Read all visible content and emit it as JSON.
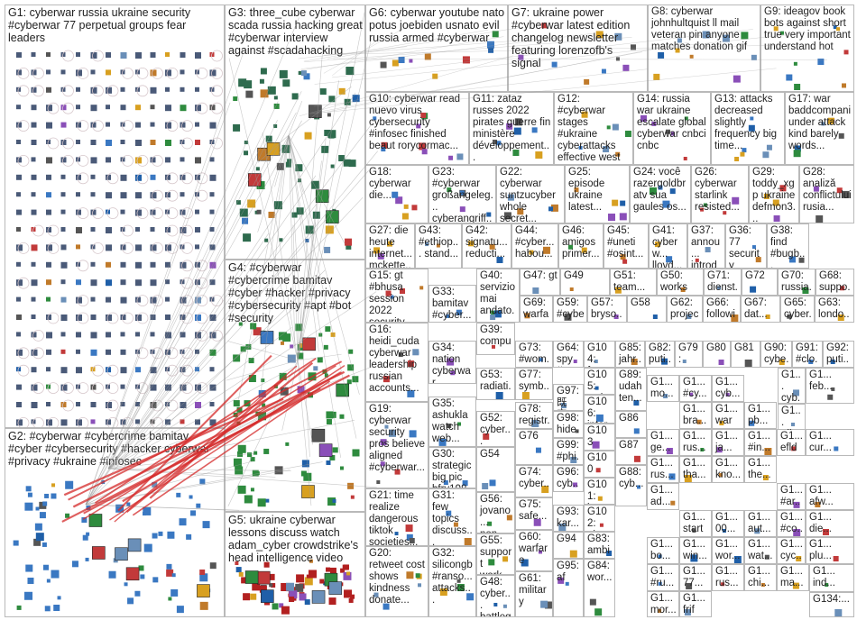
{
  "groups": [
    {
      "id": "g1",
      "label": "G1: cyberwar russia ukraine security #cyberwar 77 perpetual groups fear leaders"
    },
    {
      "id": "g2",
      "label": "G2: #cyberwar #cybercrime bamitav #cyber #cybersecurity #hacker cyberwar #privacy #ukraine #infosec"
    },
    {
      "id": "g3",
      "label": "G3: three_cube cyberwar scada russia hacking great #cyberwar interview against #scadahacking"
    },
    {
      "id": "g4",
      "label": "G4: #cyberwar #cybercrime bamitav #cyber #hacker #privacy #cybersecurity #apt #bot #security"
    },
    {
      "id": "g5",
      "label": "G5: ukraine cyberwar lessons discuss watch adam_cyber crowdstrike's head intelligence video"
    },
    {
      "id": "g6",
      "label": "G6: cyberwar youtube nato potus joebiden usnato evil russia armed #cyberwar"
    },
    {
      "id": "g7",
      "label": "G7: ukraine power #cyberwar latest edition changelog newsletter featuring lorenzofb's signal"
    },
    {
      "id": "g8",
      "label": "G8: cyberwar johnhultquist ll mail veteran pin anyone matches donation gif"
    },
    {
      "id": "g9",
      "label": "G9: ideagov book bots against short true very important understand hot"
    },
    {
      "id": "g10",
      "label": "G10: cyberwar read nuevo virus cybersecurity #infosec finished beaut rorycormac..."
    },
    {
      "id": "g11",
      "label": "G11: zataz russes 2022 pirates guerre fin ministère développement..."
    },
    {
      "id": "g12",
      "label": "G12: #cyberwar stages #ukraine cyberattacks effective west help..."
    },
    {
      "id": "g14",
      "label": "G14: russia war ukraine escalate global cyberwar cnbci cnbc"
    },
    {
      "id": "g13",
      "label": "G13: attacks decreased slightly frequency big time..."
    },
    {
      "id": "g17",
      "label": "G17: war baddcompani under attack kind barely words..."
    },
    {
      "id": "g18",
      "label": "G18: cyberwar die..."
    },
    {
      "id": "g23",
      "label": "G23: #cyberwar großangeleg... cyberangriff..."
    },
    {
      "id": "g22",
      "label": "G22: cyberwar suntzucyber whole secret..."
    },
    {
      "id": "g25",
      "label": "G25: episode ukraine latest..."
    },
    {
      "id": "g24",
      "label": "G24: você razergoldbr atv sua gaules os..."
    },
    {
      "id": "g26",
      "label": "G26: cyberwar starlink resisted..."
    },
    {
      "id": "g29",
      "label": "G29: toddy_xgp ukraine defmon3..."
    },
    {
      "id": "g28",
      "label": "G28: analiză conflictului rusia..."
    },
    {
      "id": "g27",
      "label": "G27: die heute internet... mckette..."
    },
    {
      "id": "g43",
      "label": "G43: #ethiop... stand..."
    },
    {
      "id": "g42",
      "label": "G42: signatu... reducti..."
    },
    {
      "id": "g44",
      "label": "G44: #cyber... habou..."
    },
    {
      "id": "g46",
      "label": "G46: amigos primer..."
    },
    {
      "id": "g45",
      "label": "G45: #uneti #osint..."
    },
    {
      "id": "g41",
      "label": "G41: cyberw... lloyd..."
    },
    {
      "id": "g37",
      "label": "G37: annou... introdu..."
    },
    {
      "id": "g36",
      "label": "G36: 77 security leader..."
    },
    {
      "id": "g38",
      "label": "G38: find #bugb..."
    },
    {
      "id": "g15",
      "label": "G15: gt #bhusa session 2022 security conference..."
    },
    {
      "id": "g40",
      "label": "G40: servizio mai andato..."
    },
    {
      "id": "g47",
      "label": "G47: gt"
    },
    {
      "id": "g49",
      "label": "G49"
    },
    {
      "id": "g51",
      "label": "G51: team..."
    },
    {
      "id": "g50",
      "label": "G50: works"
    },
    {
      "id": "g71",
      "label": "G71: dienst..."
    },
    {
      "id": "g72",
      "label": "G72"
    },
    {
      "id": "g70",
      "label": "G70: russia..."
    },
    {
      "id": "g68",
      "label": "G68: suppo..."
    },
    {
      "id": "g33",
      "label": "G33: bamitav #cyber... #cyberc..."
    },
    {
      "id": "g69",
      "label": "G69: warfare..."
    },
    {
      "id": "g59",
      "label": "G59: #cyber..."
    },
    {
      "id": "g57",
      "label": "G57: bryso..."
    },
    {
      "id": "g58",
      "label": "G58"
    },
    {
      "id": "g62",
      "label": "G62: projec..."
    },
    {
      "id": "g66",
      "label": "G66: followi..."
    },
    {
      "id": "g67",
      "label": "G67: dat..."
    },
    {
      "id": "g65",
      "label": "G65: cyber..."
    },
    {
      "id": "g63",
      "label": "G63: londo..."
    },
    {
      "id": "g16",
      "label": "G16: heidi_cuda cyberwar leadership russian accounts..."
    },
    {
      "id": "g39",
      "label": "G39: compu... cyber..."
    },
    {
      "id": "g34",
      "label": "G34: nation cyberwar amazin..."
    },
    {
      "id": "g73",
      "label": "G73: #wom..."
    },
    {
      "id": "g64",
      "label": "G64: spy #ny..."
    },
    {
      "id": "g104",
      "label": "G104: frase..."
    },
    {
      "id": "g85",
      "label": "G85: jahr..."
    },
    {
      "id": "g82",
      "label": "G82: puti..."
    },
    {
      "id": "g79",
      "label": "G79: trea..."
    },
    {
      "id": "g80",
      "label": "G80"
    },
    {
      "id": "g81",
      "label": "G81"
    },
    {
      "id": "g90",
      "label": "G90: cybe..."
    },
    {
      "id": "g91",
      "label": "G91: #clo..."
    },
    {
      "id": "g92",
      "label": "G92: puti..."
    },
    {
      "id": "g53",
      "label": "G53: radiati..."
    },
    {
      "id": "g77",
      "label": "G77: symb..."
    },
    {
      "id": "g97",
      "label": "G97: 既定..."
    },
    {
      "id": "g105",
      "label": "G105: welc..."
    },
    {
      "id": "g89",
      "label": "G89: udah ten..."
    },
    {
      "id": "g19",
      "label": "G19: cyberwar security pros believe aligned #cyberwar..."
    },
    {
      "id": "g35",
      "label": "G35: ashukla watch web..."
    },
    {
      "id": "g78",
      "label": "G78: registr..."
    },
    {
      "id": "g106",
      "label": "G106: inter..."
    },
    {
      "id": "g86",
      "label": "G86"
    },
    {
      "id": "g52",
      "label": "G52: cyber... gabryb..."
    },
    {
      "id": "g98",
      "label": "G98: hide..."
    },
    {
      "id": "g103",
      "label": "G103"
    },
    {
      "id": "g76",
      "label": "G76"
    },
    {
      "id": "g99",
      "label": "G99: #phi..."
    },
    {
      "id": "g87",
      "label": "G87"
    },
    {
      "id": "g30",
      "label": "G30: strategic big pic bfry198..."
    },
    {
      "id": "g54",
      "label": "G54"
    },
    {
      "id": "g100",
      "label": "G100"
    },
    {
      "id": "g21",
      "label": "G21: time realize dangerous tiktok societies..."
    },
    {
      "id": "g74",
      "label": "G74: cyber..."
    },
    {
      "id": "g96",
      "label": "G96: cyb..."
    },
    {
      "id": "g56",
      "label": "G56: jovano... non..."
    },
    {
      "id": "g101",
      "label": "G101: know..."
    },
    {
      "id": "g88",
      "label": "G88: cyb..."
    },
    {
      "id": "g31",
      "label": "G31: few topics discuss... month..."
    },
    {
      "id": "g75",
      "label": "G75: safe..."
    },
    {
      "id": "g93",
      "label": "G93: kar..."
    },
    {
      "id": "g102",
      "label": "G102: place..."
    },
    {
      "id": "g55",
      "label": "G55: support work..."
    },
    {
      "id": "g60",
      "label": "G60: warfare"
    },
    {
      "id": "g94",
      "label": "G94"
    },
    {
      "id": "g83",
      "label": "G83: ambi..."
    },
    {
      "id": "g20",
      "label": "G20: retweet cost shows kindness donate..."
    },
    {
      "id": "g32",
      "label": "G32: silicongb #ranso... attacks..."
    },
    {
      "id": "g48",
      "label": "G48: cyber... battleg..."
    },
    {
      "id": "g61",
      "label": "G61: military"
    },
    {
      "id": "g95",
      "label": "G95: af"
    },
    {
      "id": "g84",
      "label": "G84: wor..."
    },
    {
      "id": "g134",
      "label": "G134:..."
    },
    {
      "id": "gx1",
      "label": "G1... cyb..."
    },
    {
      "id": "gx2",
      "label": "G1... feb..."
    },
    {
      "id": "gx3",
      "label": "G1... mo..."
    },
    {
      "id": "gx4",
      "label": "G1... #cy..."
    },
    {
      "id": "gx5",
      "label": "G1... cyb..."
    },
    {
      "id": "gx6",
      "label": "G1... bra..."
    },
    {
      "id": "gx7",
      "label": "G1... war"
    },
    {
      "id": "gx8",
      "label": "G1... pb..."
    },
    {
      "id": "gx9",
      "label": "G1... gibt"
    },
    {
      "id": "gx10",
      "label": "G1... ge..."
    },
    {
      "id": "gx11",
      "label": "G1... rus..."
    },
    {
      "id": "gx12",
      "label": "G1... ja..."
    },
    {
      "id": "gx13",
      "label": "G1... #in..."
    },
    {
      "id": "gx14",
      "label": "G1... efld"
    },
    {
      "id": "gx15",
      "label": "G1... cur..."
    },
    {
      "id": "gx16",
      "label": "G1... rus..."
    },
    {
      "id": "gx17",
      "label": "G1... tha..."
    },
    {
      "id": "gx18",
      "label": "G1... kno..."
    },
    {
      "id": "gx19",
      "label": "G1... the..."
    },
    {
      "id": "gx20",
      "label": "G1... #ar..."
    },
    {
      "id": "gx21",
      "label": "G1... afw..."
    },
    {
      "id": "gx22",
      "label": "G1... ad..."
    },
    {
      "id": "gx23",
      "label": "G1... start"
    },
    {
      "id": "gx24",
      "label": "G1... 00..."
    },
    {
      "id": "gx25",
      "label": "G1... aut..."
    },
    {
      "id": "gx26",
      "label": "G1... #co..."
    },
    {
      "id": "gx27",
      "label": "G1... die..."
    },
    {
      "id": "gx28",
      "label": "G1... bo..."
    },
    {
      "id": "gx29",
      "label": "G1... win..."
    },
    {
      "id": "gx30",
      "label": "G1... wor..."
    },
    {
      "id": "gx31",
      "label": "G1... wat..."
    },
    {
      "id": "gx32",
      "label": "G1... cyc..."
    },
    {
      "id": "gx33",
      "label": "G1... plu..."
    },
    {
      "id": "gx34",
      "label": "G1... #ru..."
    },
    {
      "id": "gx35",
      "label": "G1... 77..."
    },
    {
      "id": "gx36",
      "label": "G1... rus..."
    },
    {
      "id": "gx37",
      "label": "G1... chi..."
    },
    {
      "id": "gx38",
      "label": "G1... ma..."
    },
    {
      "id": "gx39",
      "label": "G1... ind..."
    },
    {
      "id": "gx40",
      "label": "G1... mor..."
    },
    {
      "id": "gx41",
      "label": "G1... frif"
    }
  ],
  "colors": {
    "node_blue": "#3a78c2",
    "node_green": "#2e8b3e",
    "node_red": "#b22020",
    "edge_gray": "#9a9a9a",
    "edge_red": "#d42a2a",
    "border": "#b9b9b9"
  }
}
